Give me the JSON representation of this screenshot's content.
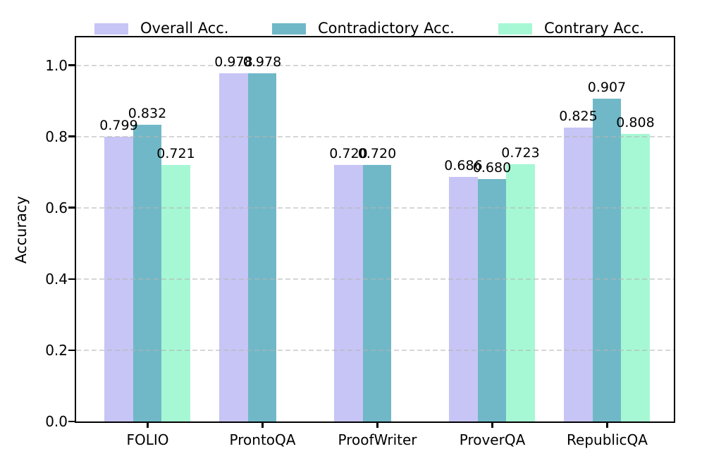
{
  "figure": {
    "background": "#ffffff",
    "frame_color": "#000000",
    "grid_color": "#bababa",
    "text_color": "#000000"
  },
  "chart_data": {
    "type": "bar",
    "title": "",
    "xlabel": "",
    "ylabel": "Accuracy",
    "categories": [
      "FOLIO",
      "ProntoQA",
      "ProofWriter",
      "ProverQA",
      "RepublicQA"
    ],
    "series": [
      {
        "name": "Overall Acc.",
        "color": "#c7c5f5",
        "values": [
          0.799,
          0.978,
          0.72,
          0.686,
          0.825
        ],
        "labels": [
          "0.799",
          "0.978",
          "0.720",
          "0.686",
          "0.825"
        ]
      },
      {
        "name": "Contradictory Acc.",
        "color": "#70b8c8",
        "values": [
          0.832,
          0.978,
          0.72,
          0.68,
          0.907
        ],
        "labels": [
          "0.832",
          "0.978",
          "0.720",
          "0.680",
          "0.907"
        ]
      },
      {
        "name": "Contrary Acc.",
        "color": "#a6f8d4",
        "values": [
          0.721,
          null,
          null,
          0.723,
          0.808
        ],
        "labels": [
          "0.721",
          null,
          null,
          "0.723",
          "0.808"
        ]
      }
    ],
    "ylim": [
      0.0,
      1.077
    ],
    "yticks": [
      "0.0",
      "0.2",
      "0.4",
      "0.6",
      "0.8",
      "1.0"
    ],
    "grid": "horizontal-dashed",
    "legend_position": "top-outside",
    "bar_group_gap_note": "null values render no bar and no label"
  }
}
